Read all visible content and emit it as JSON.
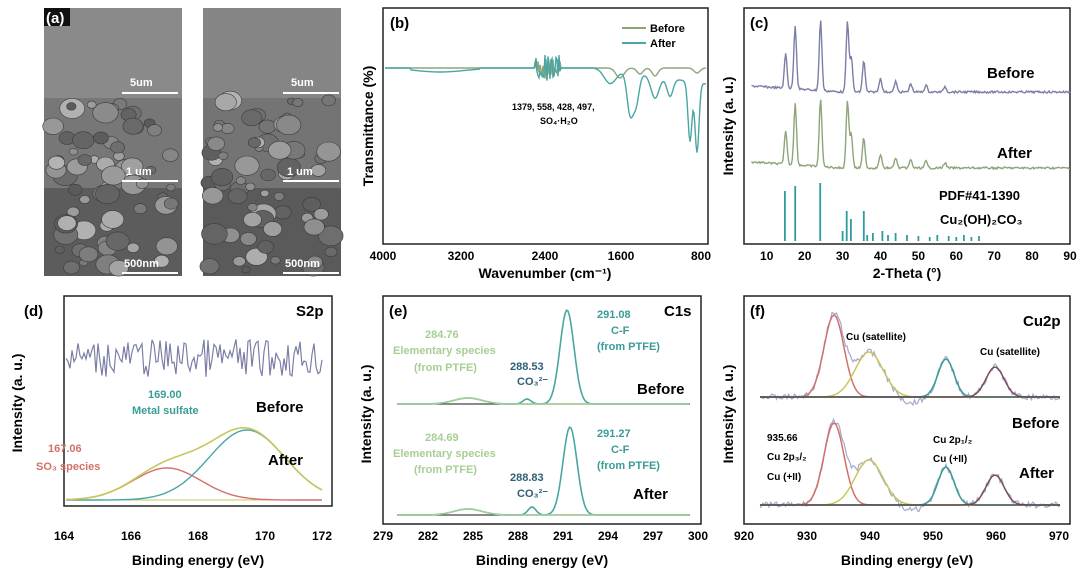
{
  "panels": {
    "a": {
      "label": "(a)",
      "scale_bars": [
        "5um",
        "1 um",
        "500nm",
        "5um",
        "1 um",
        "500nm"
      ]
    },
    "b": {
      "label": "(b)",
      "ylabel": "Transmittance (%)",
      "xlabel": "Wavenumber (cm⁻¹)",
      "xticks": [
        "4000",
        "3200",
        "2400",
        "1600",
        "800"
      ],
      "legend": [
        "Before",
        "After"
      ],
      "annotation_line1": "1379, 558, 428, 497,",
      "annotation_line2": "SO₄·H₂O"
    },
    "c": {
      "label": "(c)",
      "ylabel": "Intensity (a. u.)",
      "xlabel": "2-Theta (°)",
      "xticks": [
        "10",
        "20",
        "30",
        "40",
        "50",
        "60",
        "70",
        "80",
        "90"
      ],
      "before": "Before",
      "after": "After",
      "pdf": "PDF#41-1390",
      "compound": "Cu₂(OH)₂CO₃"
    },
    "d": {
      "label": "(d)",
      "title": "S2p",
      "ylabel": "Intensity (a. u.)",
      "xlabel": "Binding energy (eV)",
      "xticks": [
        "164",
        "166",
        "168",
        "170",
        "172"
      ],
      "before": "Before",
      "after": "After",
      "peak1_value": "169.00",
      "peak1_name": "Metal sulfate",
      "peak2_value": "167.06",
      "peak2_name": "SO₃ species"
    },
    "e": {
      "label": "(e)",
      "title": "C1s",
      "ylabel": "Intensity (a. u.)",
      "xlabel": "Binding energy (eV)",
      "xticks": [
        "279",
        "282",
        "285",
        "288",
        "291",
        "294",
        "297",
        "300"
      ],
      "before": "Before",
      "after": "After",
      "b_elem_value": "284.76",
      "elem_name1": "Elementary species",
      "elem_name2": "(from PTFE)",
      "b_co3_value": "288.53",
      "co3_name": "CO₃²⁻",
      "b_cf_value": "291.08",
      "cf_name1": "C-F",
      "cf_name2": "(from PTFE)",
      "a_elem_value": "284.69",
      "a_co3_value": "288.83",
      "a_cf_value": "291.27"
    },
    "f": {
      "label": "(f)",
      "title": "Cu2p",
      "ylabel": "Intensity (a. u.)",
      "xlabel": "Binding energy (eV)",
      "xticks": [
        "920",
        "930",
        "940",
        "950",
        "960",
        "970"
      ],
      "before": "Before",
      "after": "After",
      "satellite": "Cu (satellite)",
      "p32_value": "935.66",
      "p32_name": "Cu 2p₃/₂",
      "cu2": "Cu (+II)",
      "p12_name": "Cu 2p₁/₂"
    }
  },
  "colors": {
    "before_purple": "#7b7fa6",
    "after_green": "#8ea57a",
    "teal": "#4aa6a3",
    "red_fit": "#d2706a",
    "yellow_fit": "#c9c65e",
    "dark_fit": "#444444",
    "label_teal": "#3a9c96",
    "label_red": "#d2706a",
    "label_lightgreen": "#a6cf94"
  }
}
